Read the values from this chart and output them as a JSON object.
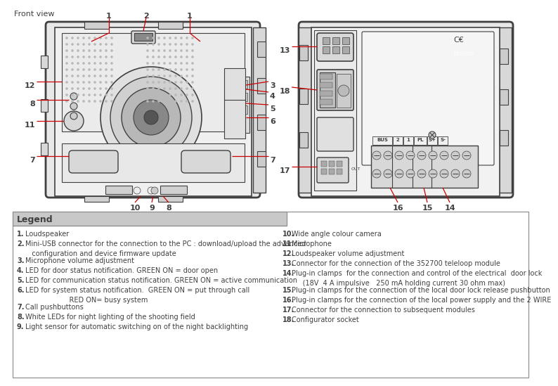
{
  "bg_color": "#ffffff",
  "line_color": "#404040",
  "red_color": "#cc0000",
  "front_view_label": "Front view",
  "legend_header": "Legend",
  "left_items": [
    [
      "1.",
      "Loudspeaker"
    ],
    [
      "2.",
      "Mini-USB connector for the connection to the PC : download/upload the advanced",
      "   configuration and device firmware update"
    ],
    [
      "3.",
      "Microphone volume adjustment"
    ],
    [
      "4.",
      "LED for door status notification. GREEN ON = door open"
    ],
    [
      "5.",
      "LED for communication status notification. GREEN ON = active communication"
    ],
    [
      "6.",
      "LED for system status notification.  GREEN ON = put through call",
      "                    RED ON= busy system"
    ],
    [
      "7.",
      "Call pushbuttons"
    ],
    [
      "8.",
      "White LEDs for night lighting of the shooting field"
    ],
    [
      "9.",
      "Light sensor for automatic switching on of the night backlighting"
    ]
  ],
  "right_items": [
    [
      "10.",
      "Wide angle colour camera"
    ],
    [
      "11.",
      "Microphone"
    ],
    [
      "12.",
      "Loudspeaker volume adjustment"
    ],
    [
      "13.",
      "Connector for the connection of the 352700 teleloop module"
    ],
    [
      "14.",
      "Plug-in clamps  for the connection and control of the electrical  door lock",
      "     (18V  4 A impulsive   250 mA holding current 30 ohm max)"
    ],
    [
      "15.",
      "Plug-in clamps for the connection of the local door lock release pushbutton"
    ],
    [
      "16.",
      "Plug-in clamps for the connection of the local power supply and the 2 WIRE"
    ],
    [
      "17.",
      "Connector for the connection to subsequent modules"
    ],
    [
      "18.",
      "Configurator socket"
    ]
  ]
}
